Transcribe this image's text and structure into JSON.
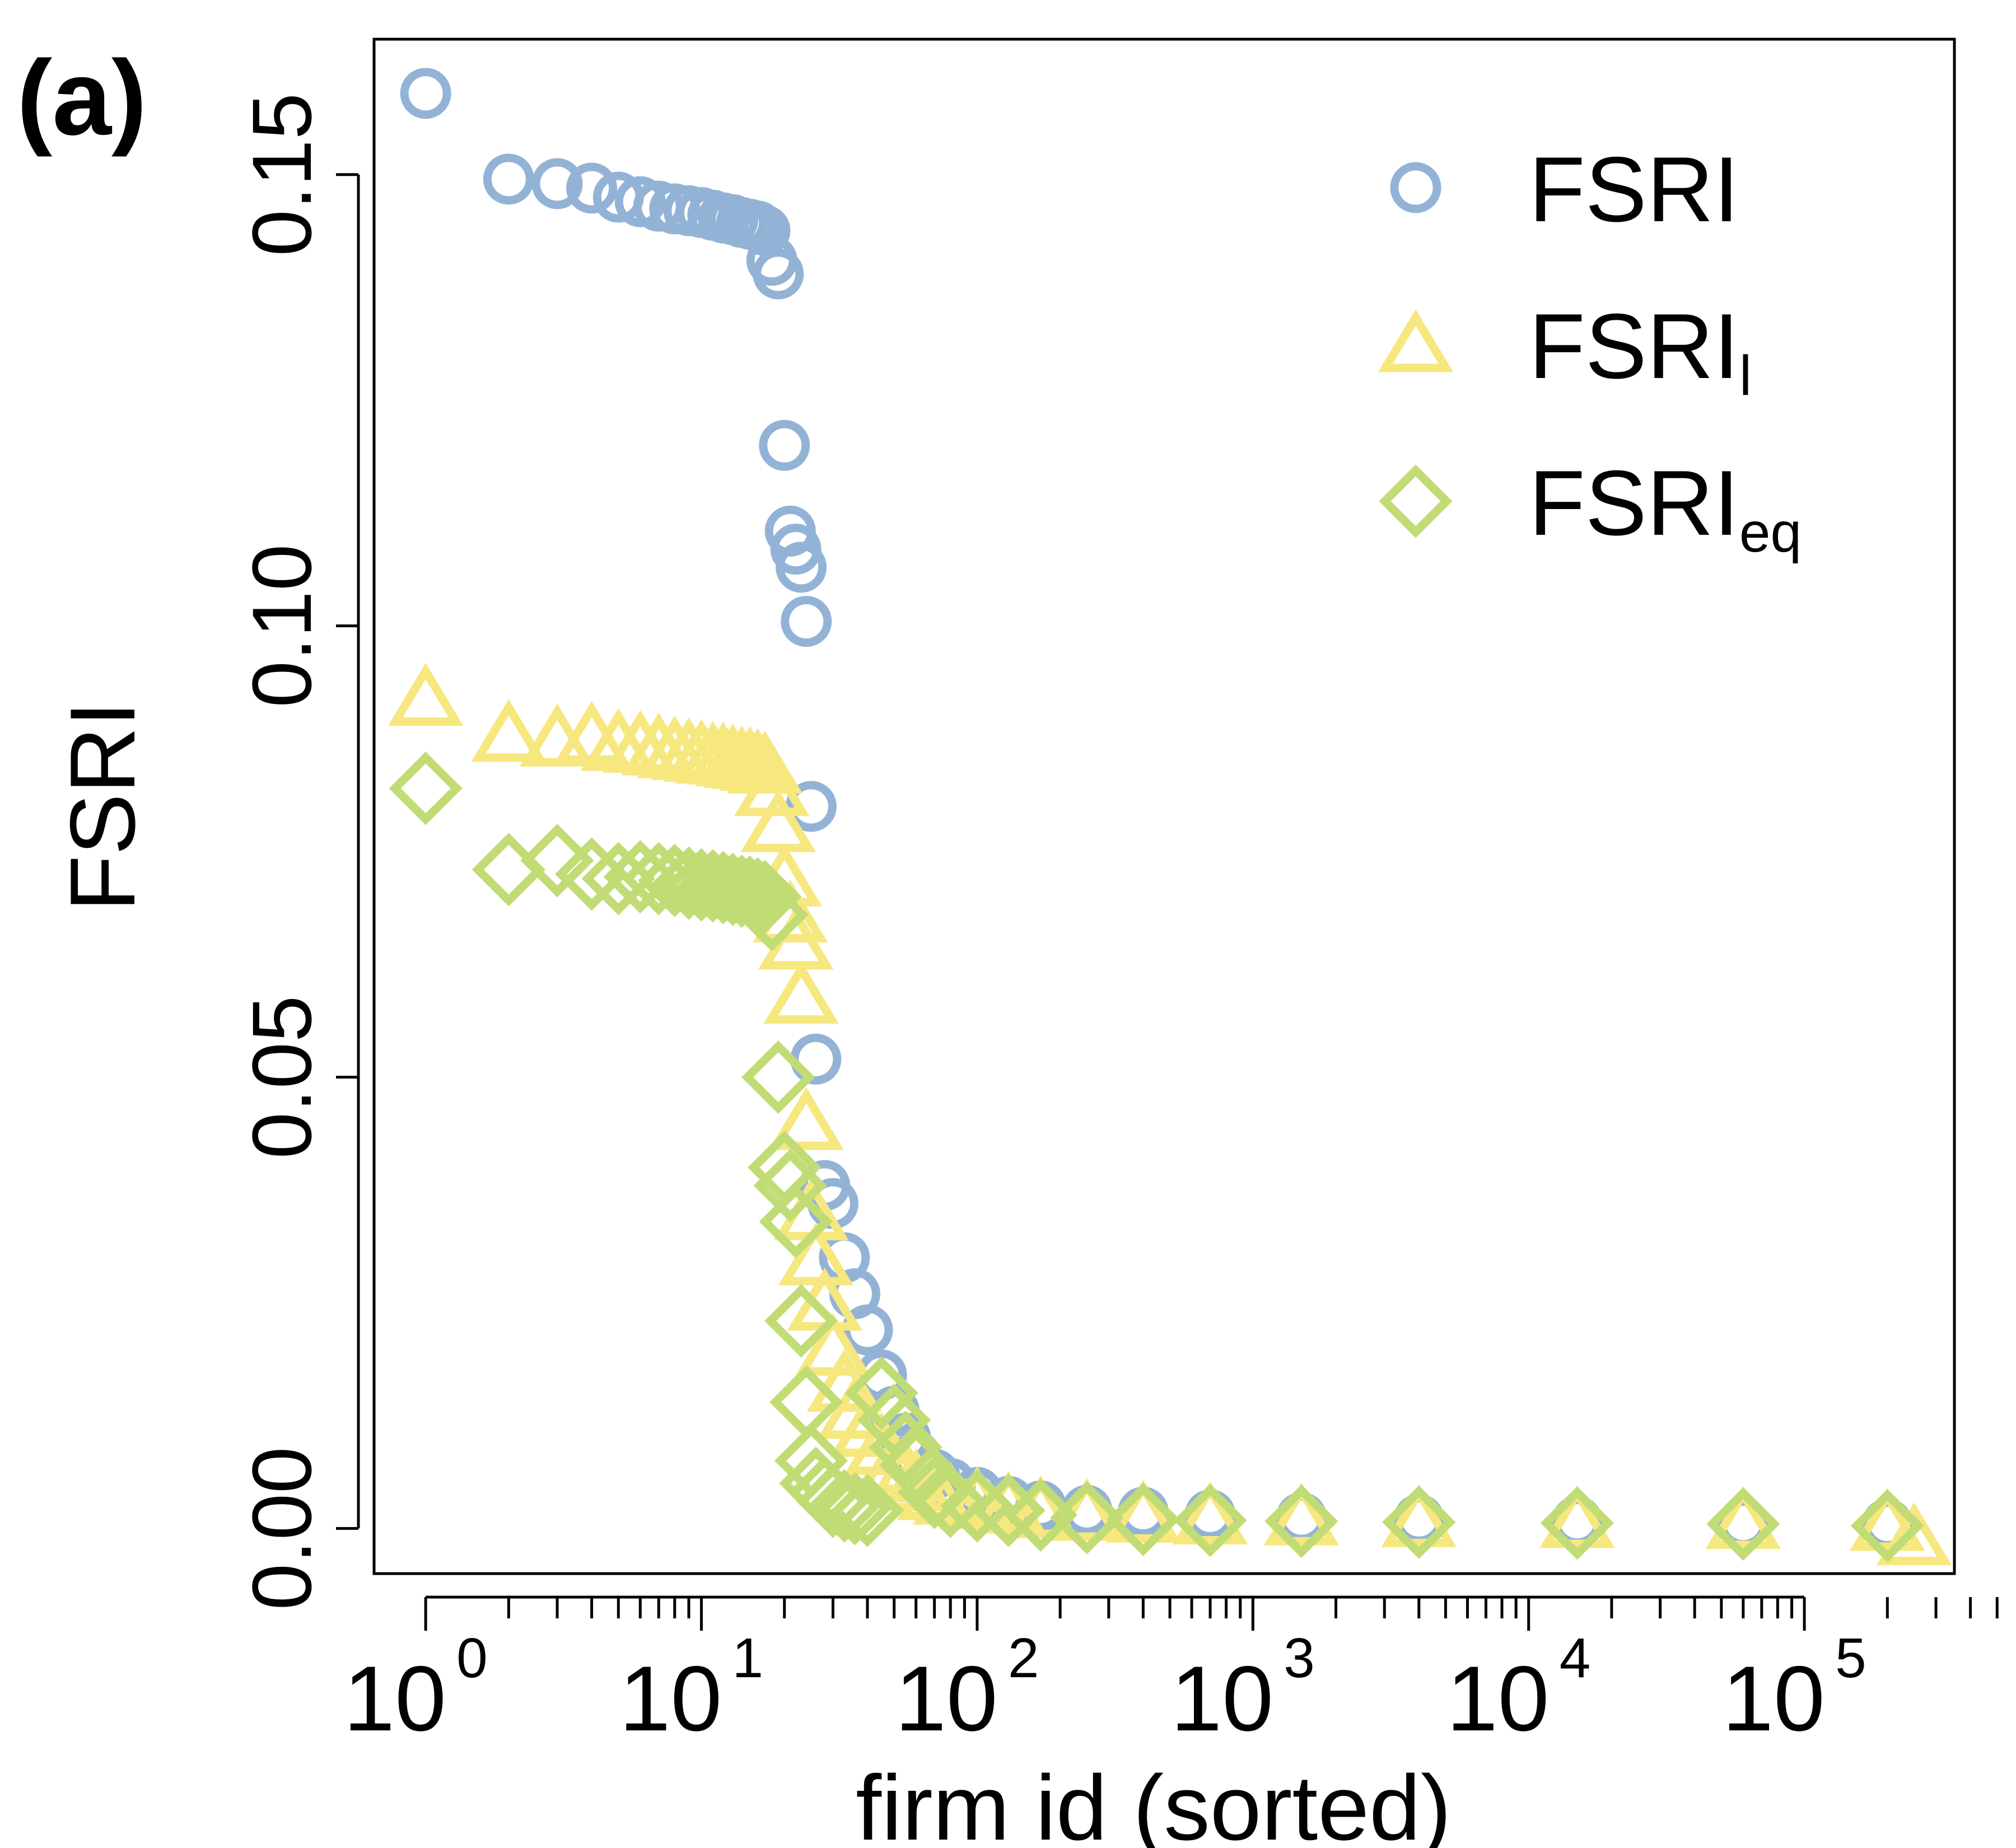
{
  "panel_label": "(a)",
  "chart_data": {
    "type": "scatter",
    "xscale": "log10",
    "xlabel": "firm id (sorted)",
    "ylabel": "FSRI",
    "xlim": [
      0.65,
      350000
    ],
    "ylim": [
      -0.005,
      0.165
    ],
    "xticks": [
      {
        "base": "10",
        "exp": "0",
        "value": 1
      },
      {
        "base": "10",
        "exp": "1",
        "value": 10
      },
      {
        "base": "10",
        "exp": "2",
        "value": 100
      },
      {
        "base": "10",
        "exp": "3",
        "value": 1000
      },
      {
        "base": "10",
        "exp": "4",
        "value": 10000
      },
      {
        "base": "10",
        "exp": "5",
        "value": 100000
      }
    ],
    "yticks": [
      {
        "label": "0.00",
        "value": 0.0
      },
      {
        "label": "0.05",
        "value": 0.05
      },
      {
        "label": "0.10",
        "value": 0.1
      },
      {
        "label": "0.15",
        "value": 0.15
      }
    ],
    "legend_position": "top-right",
    "series": [
      {
        "name": "FSRI",
        "legend_main": "FSRI",
        "legend_sub": "",
        "marker": "circle",
        "color": "#93B3D6",
        "x": [
          1,
          2,
          3,
          4,
          5,
          6,
          7,
          8,
          9,
          10,
          11,
          12,
          13,
          14,
          15,
          16,
          17,
          18,
          19,
          20,
          21,
          22,
          23,
          24,
          25,
          26,
          28,
          30,
          33,
          36,
          40,
          45,
          50,
          55,
          60,
          70,
          80,
          100,
          130,
          170,
          250,
          400,
          700,
          1500,
          4000,
          15000,
          60000,
          200000
        ],
        "y": [
          0.159,
          0.1495,
          0.149,
          0.1485,
          0.1475,
          0.147,
          0.1465,
          0.1462,
          0.146,
          0.1458,
          0.1455,
          0.1452,
          0.145,
          0.1447,
          0.1445,
          0.1443,
          0.1438,
          0.1405,
          0.139,
          0.12,
          0.1105,
          0.1085,
          0.1065,
          0.1005,
          0.08,
          0.052,
          0.038,
          0.036,
          0.03,
          0.026,
          0.022,
          0.017,
          0.013,
          0.01,
          0.008,
          0.006,
          0.005,
          0.004,
          0.003,
          0.0025,
          0.002,
          0.0018,
          0.0015,
          0.0012,
          0.001,
          0.0008,
          0.0006,
          0.0005
        ]
      },
      {
        "name": "FSRI_l",
        "legend_main": "FSRI",
        "legend_sub": "l",
        "marker": "triangle",
        "color": "#F6E77F",
        "x": [
          1,
          2,
          3,
          4,
          5,
          6,
          7,
          8,
          9,
          10,
          11,
          12,
          13,
          14,
          15,
          16,
          17,
          18,
          19,
          20,
          21,
          22,
          23,
          24,
          25,
          26,
          28,
          30,
          33,
          36,
          40,
          45,
          50,
          55,
          60,
          70,
          80,
          100,
          130,
          170,
          250,
          400,
          700,
          1500,
          4000,
          15000,
          60000,
          200000,
          250000
        ],
        "y": [
          0.092,
          0.088,
          0.0875,
          0.0878,
          0.087,
          0.0868,
          0.0865,
          0.0862,
          0.086,
          0.0858,
          0.0856,
          0.0855,
          0.0853,
          0.0851,
          0.085,
          0.0848,
          0.0845,
          0.082,
          0.078,
          0.072,
          0.068,
          0.065,
          0.059,
          0.045,
          0.035,
          0.03,
          0.025,
          0.02,
          0.016,
          0.013,
          0.011,
          0.009,
          0.007,
          0.006,
          0.005,
          0.004,
          0.0035,
          0.003,
          0.0025,
          0.002,
          0.0017,
          0.0015,
          0.0013,
          0.0012,
          0.001,
          0.0009,
          0.0008,
          0.0006,
          -0.001
        ]
      },
      {
        "name": "FSRI_eq",
        "legend_main": "FSRI",
        "legend_sub": "eq",
        "marker": "diamond",
        "color": "#C2DC75",
        "x": [
          1,
          2,
          3,
          4,
          5,
          6,
          7,
          8,
          9,
          10,
          11,
          12,
          13,
          14,
          15,
          16,
          17,
          18,
          19,
          20,
          21,
          22,
          23,
          24,
          25,
          26,
          28,
          30,
          33,
          36,
          40,
          45,
          50,
          55,
          60,
          70,
          80,
          100,
          130,
          170,
          250,
          400,
          700,
          1500,
          4000,
          15000,
          60000,
          200000
        ],
        "y": [
          0.082,
          0.073,
          0.074,
          0.0725,
          0.072,
          0.0722,
          0.072,
          0.0718,
          0.0715,
          0.0713,
          0.0712,
          0.071,
          0.0708,
          0.0706,
          0.0705,
          0.0703,
          0.07,
          0.068,
          0.05,
          0.04,
          0.038,
          0.034,
          0.023,
          0.014,
          0.0075,
          0.005,
          0.004,
          0.003,
          0.0025,
          0.0022,
          0.002,
          0.015,
          0.012,
          0.009,
          0.007,
          0.004,
          0.003,
          0.0025,
          0.002,
          0.0015,
          0.0012,
          0.001,
          0.0009,
          0.0008,
          0.0007,
          0.0006,
          0.0005,
          0.0003
        ]
      }
    ]
  }
}
